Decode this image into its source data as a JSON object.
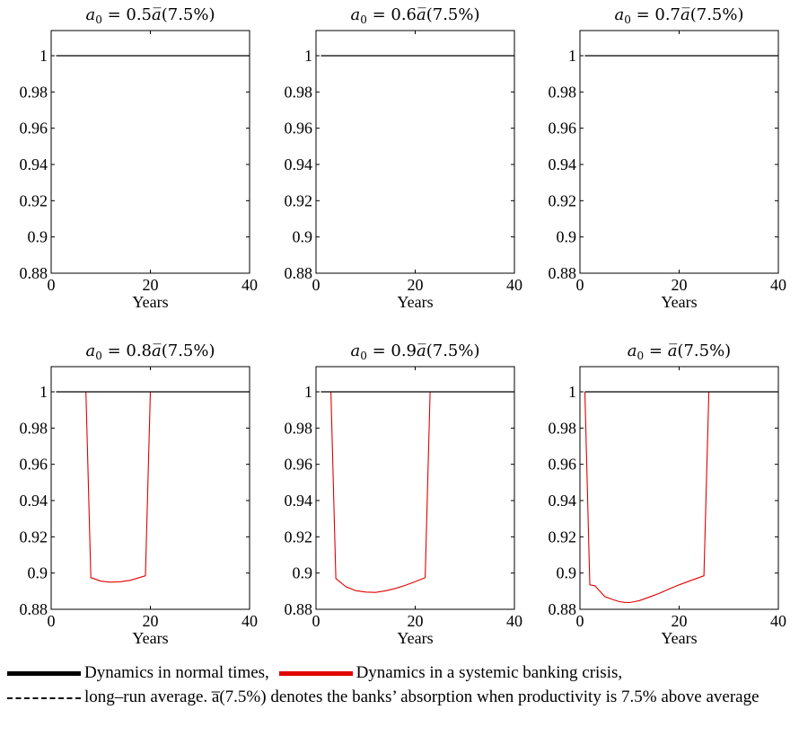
{
  "chart_data": {
    "type": "line",
    "xlabel": "Years",
    "xlim": [
      0,
      40
    ],
    "ylim": [
      0.88,
      1.01
    ],
    "xticks": [
      0,
      20,
      40
    ],
    "xtick_labels": [
      "0",
      "20",
      "40"
    ],
    "yticks": [
      0.88,
      0.9,
      0.92,
      0.94,
      0.96,
      0.98,
      1
    ],
    "ytick_labels": [
      "0.88",
      "0.9",
      "0.92",
      "0.94",
      "0.96",
      "0.98",
      "1"
    ],
    "colors": {
      "normal": "#000000",
      "crisis": "#e00000"
    },
    "panels": [
      {
        "title_factor": "0.5",
        "series": [
          {
            "role": "normal",
            "x": [
              1,
              40
            ],
            "y": [
              1,
              1
            ]
          },
          {
            "role": "crisis",
            "x": [
              1,
              40
            ],
            "y": [
              1,
              1
            ]
          }
        ]
      },
      {
        "title_factor": "0.6",
        "series": [
          {
            "role": "normal",
            "x": [
              1,
              40
            ],
            "y": [
              1,
              1
            ]
          },
          {
            "role": "crisis",
            "x": [
              1,
              40
            ],
            "y": [
              1,
              1
            ]
          }
        ]
      },
      {
        "title_factor": "0.7",
        "series": [
          {
            "role": "normal",
            "x": [
              1,
              40
            ],
            "y": [
              1,
              1
            ]
          },
          {
            "role": "crisis",
            "x": [
              1,
              40
            ],
            "y": [
              1,
              1
            ]
          }
        ]
      },
      {
        "title_factor": "0.8",
        "series": [
          {
            "role": "normal",
            "x": [
              1,
              40
            ],
            "y": [
              1,
              1
            ]
          },
          {
            "role": "crisis",
            "x": [
              1,
              7,
              8,
              10,
              12,
              14,
              16,
              19,
              20,
              40
            ],
            "y": [
              1,
              1,
              0.8975,
              0.8955,
              0.895,
              0.8952,
              0.896,
              0.8985,
              1,
              1
            ]
          }
        ]
      },
      {
        "title_factor": "0.9",
        "series": [
          {
            "role": "normal",
            "x": [
              1,
              40
            ],
            "y": [
              1,
              1
            ]
          },
          {
            "role": "crisis",
            "x": [
              1,
              3,
              4,
              6,
              8,
              10,
              12,
              14,
              16,
              18,
              20,
              22,
              23,
              40
            ],
            "y": [
              1,
              1,
              0.897,
              0.8925,
              0.8903,
              0.8895,
              0.8893,
              0.8902,
              0.8915,
              0.8932,
              0.8952,
              0.8975,
              1,
              1
            ]
          }
        ]
      },
      {
        "title_factor": "",
        "series": [
          {
            "role": "normal",
            "x": [
              1,
              40
            ],
            "y": [
              1,
              1
            ]
          },
          {
            "role": "crisis",
            "x": [
              1,
              2,
              3,
              4,
              5,
              6,
              7,
              8,
              9,
              10,
              11,
              12,
              14,
              16,
              18,
              20,
              22,
              24,
              25,
              26,
              40
            ],
            "y": [
              1,
              0.8935,
              0.893,
              0.89,
              0.887,
              0.886,
              0.885,
              0.8842,
              0.8838,
              0.8837,
              0.8842,
              0.8848,
              0.8868,
              0.8888,
              0.8913,
              0.8935,
              0.8955,
              0.8975,
              0.8985,
              1,
              1
            ]
          }
        ]
      }
    ]
  },
  "legend": {
    "normal_label": "Dynamics in normal times,",
    "crisis_label": "Dynamics in a systemic banking crisis,",
    "avg_label": "long–run average.",
    "note_pre": "",
    "note_symbol": "a̅(7.5%)",
    "note_post": " denotes the banks’ absorption when productivity is 7.5% above average"
  }
}
